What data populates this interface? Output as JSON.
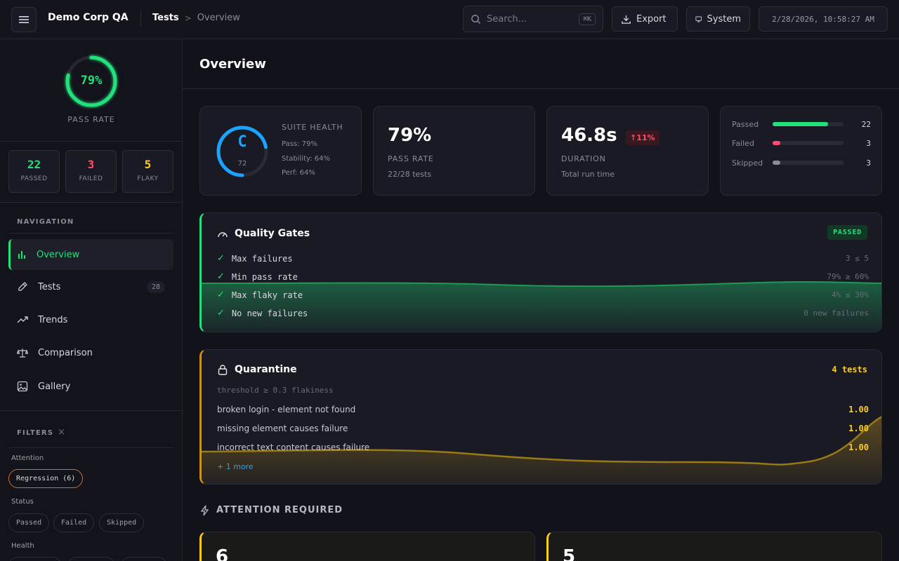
{
  "header": {
    "brand": "Demo Corp QA",
    "breadcrumb": [
      "Tests",
      "Overview"
    ],
    "search": {
      "placeholder": "Search...",
      "shortcut": "⌘K"
    },
    "export_label": "Export",
    "theme_label": "System",
    "timestamp": "2/28/2026, 10:58:27 AM"
  },
  "sidebar": {
    "pass_rate": {
      "value": "79%",
      "label": "PASS RATE",
      "fraction": 0.79
    },
    "stats": [
      {
        "value": "22",
        "label": "PASSED",
        "color": "#22e07a"
      },
      {
        "value": "3",
        "label": "FAILED",
        "color": "#ff4d6d"
      },
      {
        "value": "5",
        "label": "FLAKY",
        "color": "#ffcc1a"
      }
    ],
    "navigation_title": "NAVIGATION",
    "nav": [
      {
        "label": "Overview",
        "icon": "bar-chart-icon",
        "active": true
      },
      {
        "label": "Tests",
        "icon": "flask-icon",
        "count": "28"
      },
      {
        "label": "Trends",
        "icon": "trending-up-icon"
      },
      {
        "label": "Comparison",
        "icon": "scale-icon"
      },
      {
        "label": "Gallery",
        "icon": "image-icon"
      }
    ],
    "filters_title": "FILTERS",
    "filters": {
      "attention_label": "Attention",
      "attention_chips": [
        "Regression (6)"
      ],
      "status_label": "Status",
      "status_chips": [
        "Passed",
        "Failed",
        "Skipped"
      ],
      "health_label": "Health"
    }
  },
  "main": {
    "title": "Overview",
    "suite_health": {
      "grade": "C",
      "score": "72",
      "title": "SUITE HEALTH",
      "score_fraction": 0.72,
      "lines": [
        "Pass: 79%",
        "Stability: 64%",
        "Perf: 64%"
      ]
    },
    "pass_rate_card": {
      "value": "79%",
      "label": "PASS RATE",
      "sub": "22/28 tests"
    },
    "duration_card": {
      "value": "46.8s",
      "delta": "↑11%",
      "label": "DURATION",
      "sub": "Total run time"
    },
    "breakdown": [
      {
        "label": "Passed",
        "value": "22",
        "fraction": 0.786,
        "color": "#22e07a"
      },
      {
        "label": "Failed",
        "value": "3",
        "fraction": 0.107,
        "color": "#ff4d6d"
      },
      {
        "label": "Skipped",
        "value": "3",
        "fraction": 0.107,
        "color": "#8a8a9a"
      }
    ],
    "quality_gates": {
      "title": "Quality Gates",
      "status": "PASSED",
      "gates": [
        {
          "name": "Max failures",
          "value": "3 ≤ 5"
        },
        {
          "name": "Min pass rate",
          "value": "79% ≥ 60%"
        },
        {
          "name": "Max flaky rate",
          "value": "4% ≤ 30%"
        },
        {
          "name": "No new failures",
          "value": "0 new failures"
        }
      ]
    },
    "quarantine": {
      "title": "Quarantine",
      "count": "4 tests",
      "threshold": "threshold ≥ 0.3 flakiness",
      "items": [
        {
          "name": "broken login - element not found",
          "score": "1.00"
        },
        {
          "name": "missing element causes failure",
          "score": "1.00"
        },
        {
          "name": "incorrect text content causes failure",
          "score": "1.00"
        }
      ],
      "more": "+ 1 more"
    },
    "attention": {
      "title": "ATTENTION REQUIRED",
      "cards": [
        {
          "value": "6"
        },
        {
          "value": "5"
        }
      ]
    },
    "colors": {
      "accent": "#22e07a",
      "failed": "#ff4d6d",
      "warn": "#ffcc1a",
      "info": "#1aa3ff"
    }
  }
}
